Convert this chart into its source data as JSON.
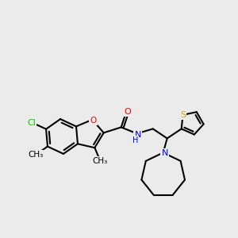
{
  "background_color": "#ebebeb",
  "bond_color": "#000000",
  "atom_colors": {
    "O": "#ff0000",
    "N": "#0000ff",
    "S": "#ccaa00",
    "Cl": "#00cc00",
    "H": "#000000",
    "C": "#000000"
  },
  "figsize": [
    3.0,
    3.0
  ],
  "dpi": 100
}
